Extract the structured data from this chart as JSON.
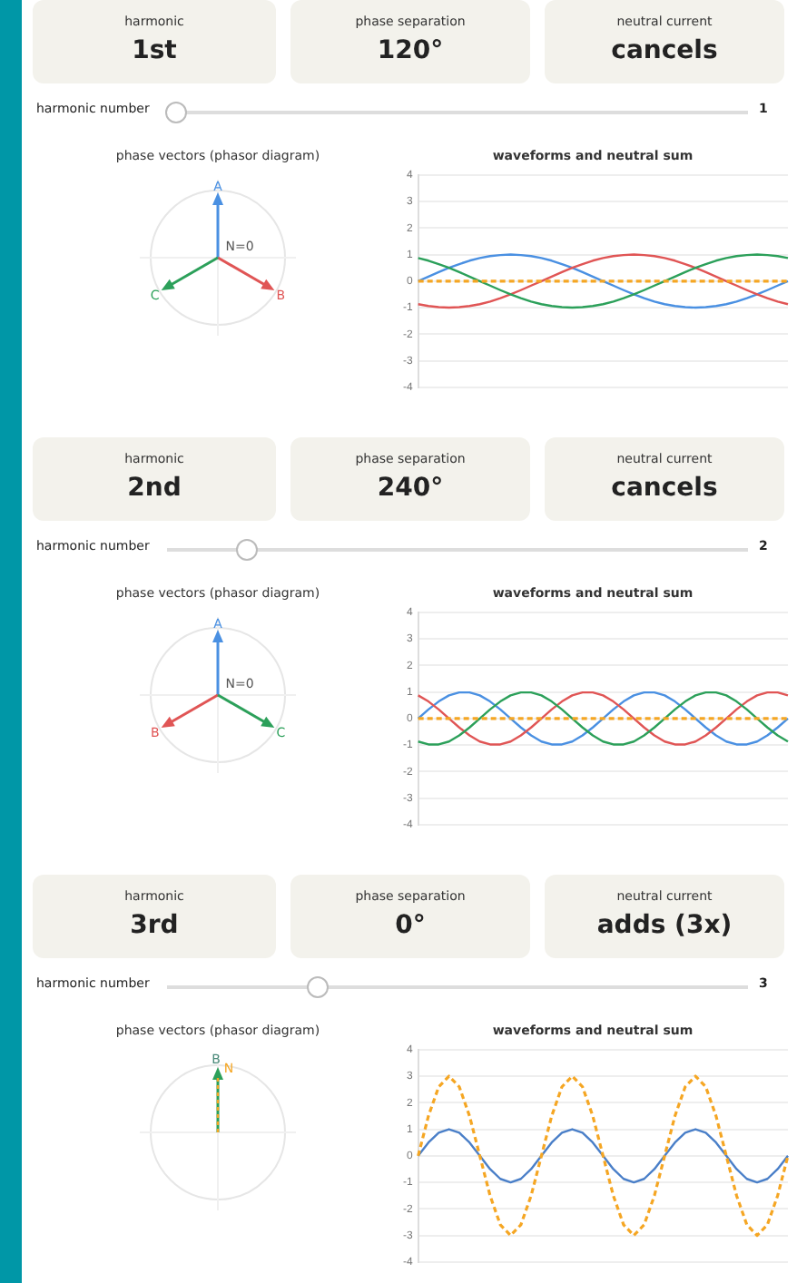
{
  "chart_data": [
    {
      "type": "other",
      "annotations": [
        "harmonic",
        "1st",
        "phase separation",
        "120°",
        "neutral current",
        "cancels",
        "harmonic number",
        "1"
      ]
    },
    {
      "type": "other",
      "title": "phase vectors (phasor diagram)",
      "annotations": [
        "A",
        "B",
        "C",
        "N=0"
      ]
    },
    {
      "type": "line",
      "title": "waveforms and neutral sum",
      "categories": [
        null,
        null,
        null,
        null,
        null,
        null,
        null,
        null,
        null,
        null,
        null,
        null,
        null,
        null,
        null,
        null,
        null,
        null,
        null,
        null,
        null,
        null,
        null,
        null,
        null,
        null,
        null,
        null,
        null,
        null,
        null,
        null,
        null,
        null,
        null,
        null,
        null
      ],
      "ylim": [
        -4,
        4
      ],
      "yticks": [
        -4,
        -3,
        -2,
        -1,
        0,
        1,
        2,
        3,
        4
      ],
      "grid": "y",
      "tick_labels": "y",
      "marker": "none",
      "series": [
        {
          "color": "#4a90e2",
          "values": [
            0,
            0.17,
            0.34,
            0.5,
            0.64,
            0.77,
            0.87,
            0.94,
            0.98,
            1,
            0.98,
            0.94,
            0.87,
            0.77,
            0.64,
            0.5,
            0.34,
            0.17,
            0,
            -0.17,
            -0.34,
            -0.5,
            -0.64,
            -0.77,
            -0.87,
            -0.94,
            -0.98,
            -1,
            -0.98,
            -0.94,
            -0.87,
            -0.77,
            -0.64,
            -0.5,
            -0.34,
            -0.17,
            0
          ]
        },
        {
          "color": "#e05555",
          "values": [
            -0.87,
            -0.94,
            -0.98,
            -1,
            -0.98,
            -0.94,
            -0.87,
            -0.77,
            -0.64,
            -0.5,
            -0.34,
            -0.17,
            0,
            0.17,
            0.34,
            0.5,
            0.64,
            0.77,
            0.87,
            0.94,
            0.98,
            1,
            0.98,
            0.94,
            0.87,
            0.77,
            0.64,
            0.5,
            0.34,
            0.17,
            0,
            -0.17,
            -0.34,
            -0.5,
            -0.64,
            -0.77,
            -0.87
          ]
        },
        {
          "color": "#2ca05a",
          "values": [
            0.87,
            0.77,
            0.64,
            0.5,
            0.34,
            0.17,
            0,
            -0.17,
            -0.34,
            -0.5,
            -0.64,
            -0.77,
            -0.87,
            -0.94,
            -0.98,
            -1,
            -0.98,
            -0.94,
            -0.87,
            -0.77,
            -0.64,
            -0.5,
            -0.34,
            -0.17,
            0,
            0.17,
            0.34,
            0.5,
            0.64,
            0.77,
            0.87,
            0.94,
            0.98,
            1,
            0.98,
            0.94,
            0.87
          ]
        },
        {
          "color": "#f5a623",
          "line_style": "dashed",
          "values": [
            0,
            0,
            0,
            0,
            0,
            0,
            0,
            0,
            0,
            0,
            0,
            0,
            0,
            0,
            0,
            0,
            0,
            0,
            0,
            0,
            0,
            0,
            0,
            0,
            0,
            0,
            0,
            0,
            0,
            0,
            0,
            0,
            0,
            0,
            0,
            0,
            0
          ]
        }
      ]
    },
    {
      "type": "other",
      "annotations": [
        "harmonic",
        "2nd",
        "phase separation",
        "240°",
        "neutral current",
        "cancels",
        "harmonic number",
        "2"
      ]
    },
    {
      "type": "other",
      "title": "phase vectors (phasor diagram)",
      "annotations": [
        "A",
        "B",
        "C",
        "N=0"
      ]
    },
    {
      "type": "line",
      "title": "waveforms and neutral sum",
      "categories": [
        null,
        null,
        null,
        null,
        null,
        null,
        null,
        null,
        null,
        null,
        null,
        null,
        null,
        null,
        null,
        null,
        null,
        null,
        null,
        null,
        null,
        null,
        null,
        null,
        null,
        null,
        null,
        null,
        null,
        null,
        null,
        null,
        null,
        null,
        null,
        null,
        null
      ],
      "ylim": [
        -4,
        4
      ],
      "yticks": [
        -4,
        -3,
        -2,
        -1,
        0,
        1,
        2,
        3,
        4
      ],
      "grid": "y",
      "tick_labels": "y",
      "marker": "none",
      "series": [
        {
          "color": "#4a90e2",
          "values": [
            0,
            0.34,
            0.64,
            0.87,
            0.98,
            0.98,
            0.87,
            0.64,
            0.34,
            0,
            -0.34,
            -0.64,
            -0.87,
            -0.98,
            -0.98,
            -0.87,
            -0.64,
            -0.34,
            0,
            0.34,
            0.64,
            0.87,
            0.98,
            0.98,
            0.87,
            0.64,
            0.34,
            0,
            -0.34,
            -0.64,
            -0.87,
            -0.98,
            -0.98,
            -0.87,
            -0.64,
            -0.34,
            0
          ]
        },
        {
          "color": "#e05555",
          "values": [
            0.87,
            0.64,
            0.34,
            0,
            -0.34,
            -0.64,
            -0.87,
            -0.98,
            -0.98,
            -0.87,
            -0.64,
            -0.34,
            0,
            0.34,
            0.64,
            0.87,
            0.98,
            0.98,
            0.87,
            0.64,
            0.34,
            0,
            -0.34,
            -0.64,
            -0.87,
            -0.98,
            -0.98,
            -0.87,
            -0.64,
            -0.34,
            0,
            0.34,
            0.64,
            0.87,
            0.98,
            0.98,
            0.87
          ]
        },
        {
          "color": "#2ca05a",
          "values": [
            -0.87,
            -0.98,
            -0.98,
            -0.87,
            -0.64,
            -0.34,
            0,
            0.34,
            0.64,
            0.87,
            0.98,
            0.98,
            0.87,
            0.64,
            0.34,
            0,
            -0.34,
            -0.64,
            -0.87,
            -0.98,
            -0.98,
            -0.87,
            -0.64,
            -0.34,
            0,
            0.34,
            0.64,
            0.87,
            0.98,
            0.98,
            0.87,
            0.64,
            0.34,
            0,
            -0.34,
            -0.64,
            -0.87
          ]
        },
        {
          "color": "#f5a623",
          "line_style": "dashed",
          "values": [
            0,
            0,
            0,
            0,
            0,
            0,
            0,
            0,
            0,
            0,
            0,
            0,
            0,
            0,
            0,
            0,
            0,
            0,
            0,
            0,
            0,
            0,
            0,
            0,
            0,
            0,
            0,
            0,
            0,
            0,
            0,
            0,
            0,
            0,
            0,
            0,
            0
          ]
        }
      ]
    },
    {
      "type": "other",
      "annotations": [
        "harmonic",
        "3rd",
        "phase separation",
        "0°",
        "neutral current",
        "adds (3x)",
        "harmonic number",
        "3"
      ]
    },
    {
      "type": "other",
      "title": "phase vectors (phasor diagram)",
      "annotations": [
        "B",
        "N"
      ]
    },
    {
      "type": "line",
      "title": "waveforms and neutral sum",
      "categories": [
        null,
        null,
        null,
        null,
        null,
        null,
        null,
        null,
        null,
        null,
        null,
        null,
        null,
        null,
        null,
        null,
        null,
        null,
        null,
        null,
        null,
        null,
        null,
        null,
        null,
        null,
        null,
        null,
        null,
        null,
        null,
        null,
        null,
        null,
        null,
        null,
        null
      ],
      "ylim": [
        -4,
        4
      ],
      "yticks": [
        -4,
        -3,
        -2,
        -1,
        0,
        1,
        2,
        3,
        4
      ],
      "grid": "y",
      "tick_labels": "y",
      "marker": "none",
      "series": [
        {
          "color": "#4a7fc8",
          "values": [
            0,
            0.5,
            0.87,
            1,
            0.87,
            0.5,
            0,
            -0.5,
            -0.87,
            -1,
            -0.87,
            -0.5,
            0,
            0.5,
            0.87,
            1,
            0.87,
            0.5,
            0,
            -0.5,
            -0.87,
            -1,
            -0.87,
            -0.5,
            0,
            0.5,
            0.87,
            1,
            0.87,
            0.5,
            0,
            -0.5,
            -0.87,
            -1,
            -0.87,
            -0.5,
            0
          ]
        },
        {
          "color": "#f5a623",
          "line_style": "dashed",
          "values": [
            0,
            1.5,
            2.6,
            3,
            2.6,
            1.5,
            0,
            -1.5,
            -2.6,
            -3,
            -2.6,
            -1.5,
            0,
            1.5,
            2.6,
            3,
            2.6,
            1.5,
            0,
            -1.5,
            -2.6,
            -3,
            -2.6,
            -1.5,
            0,
            1.5,
            2.6,
            3,
            2.6,
            1.5,
            0,
            -1.5,
            -2.6,
            -3,
            -2.6,
            -1.5,
            0
          ]
        }
      ]
    }
  ]
}
